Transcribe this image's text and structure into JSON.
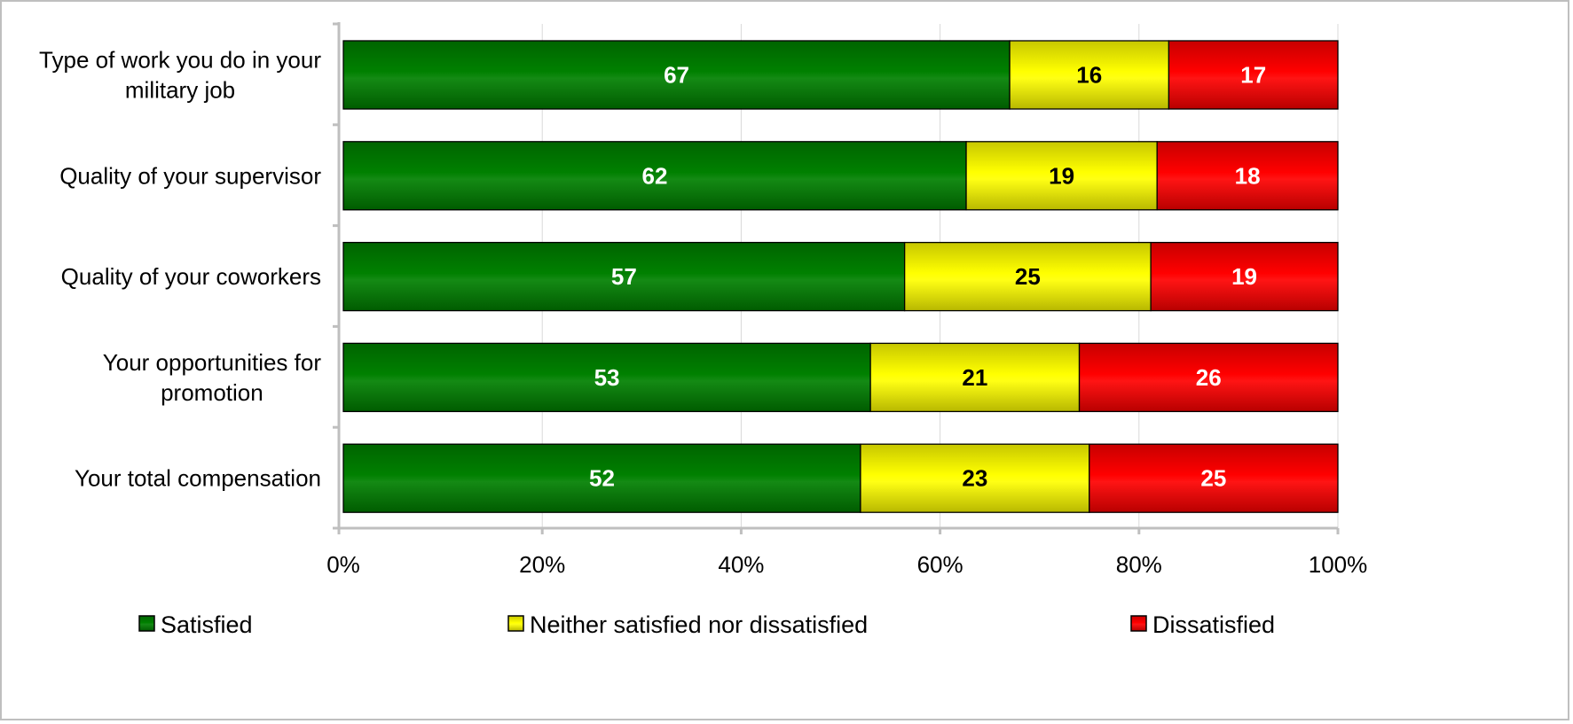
{
  "chart_data": {
    "type": "bar",
    "orientation": "horizontal",
    "stacked": "percent",
    "categories": [
      [
        "Type of work you do in your",
        "military job"
      ],
      [
        "Quality of your supervisor"
      ],
      [
        "Quality of your coworkers"
      ],
      [
        "Your opportunities for",
        "promotion"
      ],
      [
        "Your total compensation"
      ]
    ],
    "series": [
      {
        "name": "Satisfied",
        "color": "#008000",
        "label_color": "#ffffff",
        "values": [
          67,
          62,
          57,
          53,
          52
        ]
      },
      {
        "name": "Neither satisfied nor dissatisfied",
        "color": "#ffff00",
        "label_color": "#000000",
        "values": [
          16,
          19,
          25,
          21,
          23
        ]
      },
      {
        "name": "Dissatisfied",
        "color": "#ff0000",
        "label_color": "#ffffff",
        "values": [
          17,
          18,
          19,
          26,
          25
        ]
      }
    ],
    "x_ticks": [
      "0%",
      "20%",
      "40%",
      "60%",
      "80%",
      "100%"
    ],
    "xlim": [
      0,
      100
    ],
    "grid": true,
    "legend_position": "bottom"
  }
}
